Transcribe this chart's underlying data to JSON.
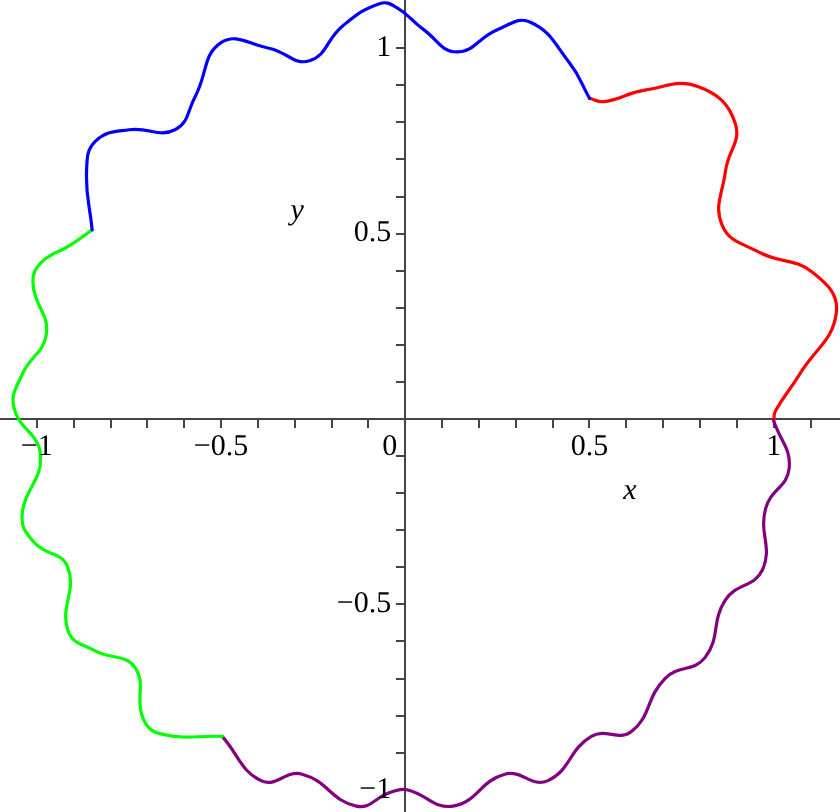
{
  "chart_data": {
    "type": "line",
    "xlabel": "x",
    "ylabel": "y",
    "xlim": [
      -1.1,
      1.18
    ],
    "ylim": [
      -1.06,
      1.13
    ],
    "xticks": [
      {
        "value": -1,
        "label": "−1"
      },
      {
        "value": -0.9,
        "label": null
      },
      {
        "value": -0.8,
        "label": null
      },
      {
        "value": -0.7,
        "label": null
      },
      {
        "value": -0.6,
        "label": null
      },
      {
        "value": -0.5,
        "label": "−0.5"
      },
      {
        "value": -0.4,
        "label": null
      },
      {
        "value": -0.3,
        "label": null
      },
      {
        "value": -0.2,
        "label": null
      },
      {
        "value": -0.1,
        "label": null
      },
      {
        "value": 0,
        "label": "0"
      },
      {
        "value": 0.1,
        "label": null
      },
      {
        "value": 0.2,
        "label": null
      },
      {
        "value": 0.3,
        "label": null
      },
      {
        "value": 0.4,
        "label": null
      },
      0.5,
      {
        "value": 0.6,
        "label": null
      },
      {
        "value": 0.7,
        "label": null
      },
      {
        "value": 0.8,
        "label": null
      },
      {
        "value": 0.9,
        "label": null
      },
      1,
      {
        "value": 1.1,
        "label": null
      }
    ],
    "yticks": [
      {
        "value": -1,
        "label": "−1"
      },
      {
        "value": -0.9,
        "label": null
      },
      {
        "value": -0.8,
        "label": null
      },
      {
        "value": -0.7,
        "label": null
      },
      {
        "value": -0.6,
        "label": null
      },
      {
        "value": -0.5,
        "label": "−0.5"
      },
      {
        "value": -0.4,
        "label": null
      },
      {
        "value": -0.3,
        "label": null
      },
      {
        "value": -0.2,
        "label": null
      },
      {
        "value": -0.1,
        "label": null
      },
      {
        "value": 0.1,
        "label": null
      },
      {
        "value": 0.2,
        "label": null
      },
      {
        "value": 0.3,
        "label": null
      },
      {
        "value": 0.4,
        "label": null
      },
      0.5,
      {
        "value": 0.6,
        "label": null
      },
      {
        "value": 0.7,
        "label": null
      },
      {
        "value": 0.8,
        "label": null
      },
      {
        "value": 0.9,
        "label": null
      },
      1
    ],
    "grid": false,
    "legend": false,
    "marker": "none",
    "line_style": "solid",
    "series": [
      {
        "color": "#0000ff",
        "x": [
          0.5,
          0.446,
          0.34,
          0.25,
          0.14,
          0.05,
          -0.024,
          -0.07,
          -0.17,
          -0.26,
          -0.37,
          -0.5,
          -0.57,
          -0.625,
          -0.75,
          -0.84,
          -0.865,
          -0.85
        ],
        "values": [
          0.865,
          0.96,
          1.07,
          1.05,
          0.99,
          1.05,
          1.11,
          1.12,
          1.06,
          0.966,
          1.0,
          1.015,
          0.87,
          0.78,
          0.78,
          0.75,
          0.67,
          0.51
        ]
      },
      {
        "color": "#00ff00",
        "x": [
          -0.85,
          -0.907,
          -0.99,
          -1.01,
          -0.974,
          -1.04,
          -1.062,
          -0.99,
          -1.04,
          -1.007,
          -0.916,
          -0.916,
          -0.843,
          -0.734,
          -0.712,
          -0.66,
          -0.497
        ],
        "values": [
          0.51,
          0.47,
          0.42,
          0.36,
          0.23,
          0.12,
          0.03,
          -0.097,
          -0.26,
          -0.333,
          -0.4,
          -0.57,
          -0.625,
          -0.67,
          -0.807,
          -0.85,
          -0.856
        ]
      },
      {
        "color": "#800080",
        "x": [
          -0.497,
          -0.39,
          -0.28,
          -0.133,
          -0.04,
          0.004,
          0.13,
          0.27,
          0.386,
          0.505,
          0.614,
          0.705,
          0.814,
          0.869,
          0.97,
          0.978,
          1.042,
          1.0
        ],
        "values": [
          -0.856,
          -0.976,
          -0.958,
          -1.044,
          -1.007,
          -1.0,
          -1.044,
          -0.958,
          -0.976,
          -0.856,
          -0.843,
          -0.7,
          -0.643,
          -0.488,
          -0.406,
          -0.242,
          -0.133,
          -0.005
        ]
      },
      {
        "color": "#ff0000",
        "x": [
          1.0,
          1.005,
          1.07,
          1.17,
          1.106,
          0.96,
          0.86,
          0.869,
          0.896,
          0.796,
          0.65,
          0.54,
          0.5
        ],
        "values": [
          -0.005,
          0.022,
          0.12,
          0.286,
          0.395,
          0.45,
          0.523,
          0.668,
          0.796,
          0.896,
          0.887,
          0.856,
          0.865
        ]
      }
    ]
  }
}
